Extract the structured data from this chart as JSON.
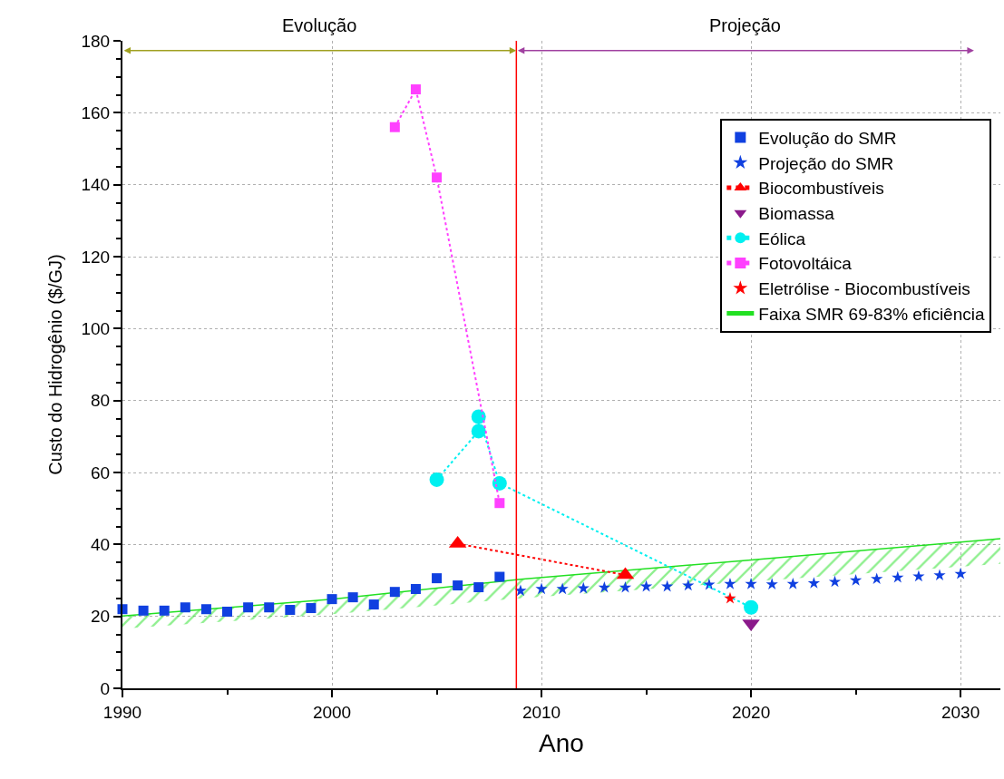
{
  "chart_data": {
    "type": "scatter",
    "xlabel": "Ano",
    "ylabel": "Custo do Hidrogênio ($/GJ)",
    "xlim": [
      1990,
      2031.9
    ],
    "ylim": [
      0,
      180
    ],
    "xticks": [
      1990,
      2000,
      2010,
      2020,
      2030
    ],
    "yticks": [
      0,
      20,
      40,
      60,
      80,
      100,
      120,
      140,
      160,
      180
    ],
    "grid": true,
    "legend": "top right",
    "annotations": [
      "Evolução",
      "Projeção"
    ],
    "ref_lines": [
      {
        "axis": "x",
        "value": 2008.8,
        "color": "#ff0000",
        "line_style": "solid"
      }
    ],
    "series": [
      {
        "name": "Evolução do SMR",
        "color": "#1040e0",
        "marker": "square",
        "x": [
          1990,
          1991,
          1992,
          1993,
          1994,
          1995,
          1996,
          1997,
          1998,
          1999,
          2000,
          2001,
          2002,
          2003,
          2004,
          2005,
          2006,
          2007,
          2008
        ],
        "values": [
          22,
          21.6,
          21.6,
          22.5,
          22,
          21.3,
          22.5,
          22.5,
          21.8,
          22.3,
          24.8,
          25.3,
          23.3,
          26.8,
          27.6,
          30.6,
          28.6,
          28.1,
          31
        ]
      },
      {
        "name": "Projeção do SMR",
        "color": "#1040e0",
        "marker": "star",
        "x": [
          2009,
          2010,
          2011,
          2012,
          2013,
          2014,
          2015,
          2016,
          2017,
          2018,
          2019,
          2020,
          2021,
          2022,
          2023,
          2024,
          2025,
          2026,
          2027,
          2028,
          2029,
          2030
        ],
        "values": [
          27.1,
          27.6,
          27.6,
          27.8,
          28,
          28,
          28.3,
          28.3,
          28.6,
          28.8,
          29,
          29,
          28.9,
          29,
          29.2,
          29.6,
          30,
          30.4,
          30.8,
          31.1,
          31.4,
          31.8
        ]
      },
      {
        "name": "Biocombustíveis",
        "type": "line",
        "color": "#ff0000",
        "marker": "triangle",
        "line_style": "dotted",
        "x": [
          2006,
          2014
        ],
        "values": [
          40.2,
          31.5
        ]
      },
      {
        "name": "Biomassa",
        "color": "#8b1a8b",
        "marker": "triangle-down",
        "x": [
          2020
        ],
        "values": [
          18
        ]
      },
      {
        "name": "Eólica",
        "type": "line",
        "color": "#00f0f0",
        "marker": "circle",
        "line_style": "dotted",
        "x": [
          2005,
          2007,
          2007,
          2008,
          2020
        ],
        "values": [
          58,
          71.5,
          75.5,
          57,
          22.5
        ]
      },
      {
        "name": "Fotovoltáica",
        "type": "line",
        "color": "#ff40ff",
        "marker": "square",
        "line_style": "dotted",
        "x": [
          2003,
          2004,
          2005,
          2008
        ],
        "values": [
          156,
          166.5,
          142,
          51.5
        ]
      },
      {
        "name": "Eletrólise - Biocombustíveis",
        "color": "#ff0000",
        "marker": "star",
        "x": [
          2019
        ],
        "values": [
          25
        ]
      },
      {
        "name": "Faixa SMR 69-83% eficiência",
        "type": "line",
        "marker": "none",
        "line_style": "solid",
        "color": "#22e022",
        "x": [
          1990,
          2000,
          2009,
          2020,
          2031.9
        ],
        "values": [
          20.1,
          24.8,
          30.3,
          35.7,
          41.6
        ],
        "lower": [
          16.6,
          20.6,
          25,
          29.7,
          34.6
        ],
        "upper": [
          20.1,
          24.8,
          30.3,
          35.7,
          41.6
        ]
      }
    ]
  }
}
